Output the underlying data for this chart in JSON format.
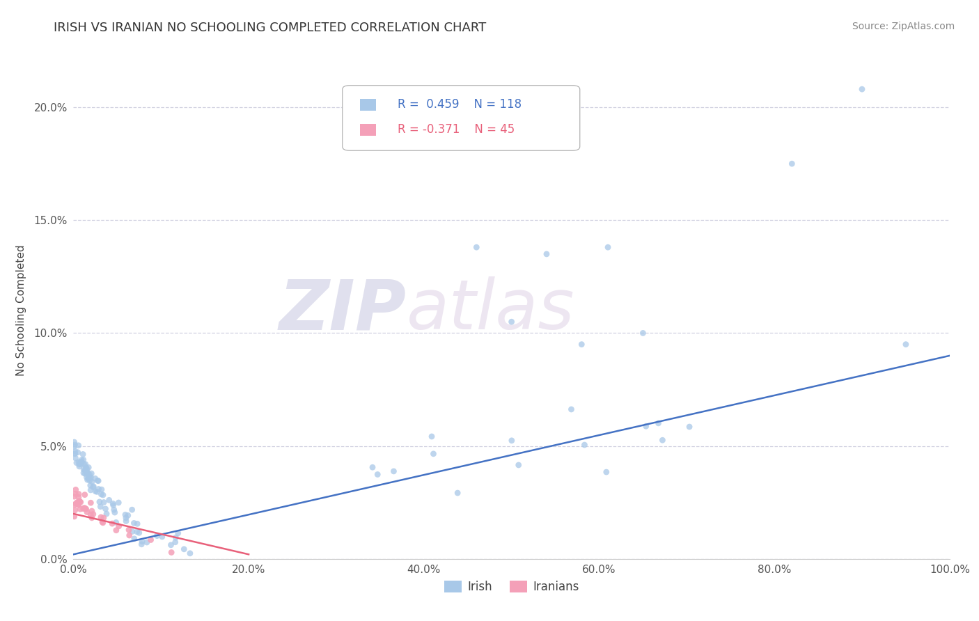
{
  "title": "IRISH VS IRANIAN NO SCHOOLING COMPLETED CORRELATION CHART",
  "source": "Source: ZipAtlas.com",
  "ylabel": "No Schooling Completed",
  "watermark_zip": "ZIP",
  "watermark_atlas": "atlas",
  "legend_irish": "Irish",
  "legend_iranians": "Iranians",
  "irish_R": "0.459",
  "irish_N": "118",
  "iranian_R": "-0.371",
  "iranian_N": "45",
  "irish_color": "#a8c8e8",
  "iranian_color": "#f4a0b8",
  "irish_line_color": "#4472c4",
  "iranian_line_color": "#e8607a",
  "background_color": "#ffffff",
  "grid_color": "#d0d0e0",
  "xlim": [
    0,
    100
  ],
  "ylim": [
    0,
    22
  ],
  "yticks": [
    0,
    5,
    10,
    15,
    20
  ],
  "ytick_labels": [
    "0.0%",
    "5.0%",
    "10.0%",
    "15.0%",
    "20.0%"
  ],
  "xticks": [
    0,
    20,
    40,
    60,
    80,
    100
  ],
  "xtick_labels": [
    "0.0%",
    "20.0%",
    "40.0%",
    "60.0%",
    "80.0%",
    "100.0%"
  ],
  "title_fontsize": 13,
  "axis_label_fontsize": 11,
  "tick_fontsize": 11,
  "source_fontsize": 10,
  "legend_text_fontsize": 12
}
